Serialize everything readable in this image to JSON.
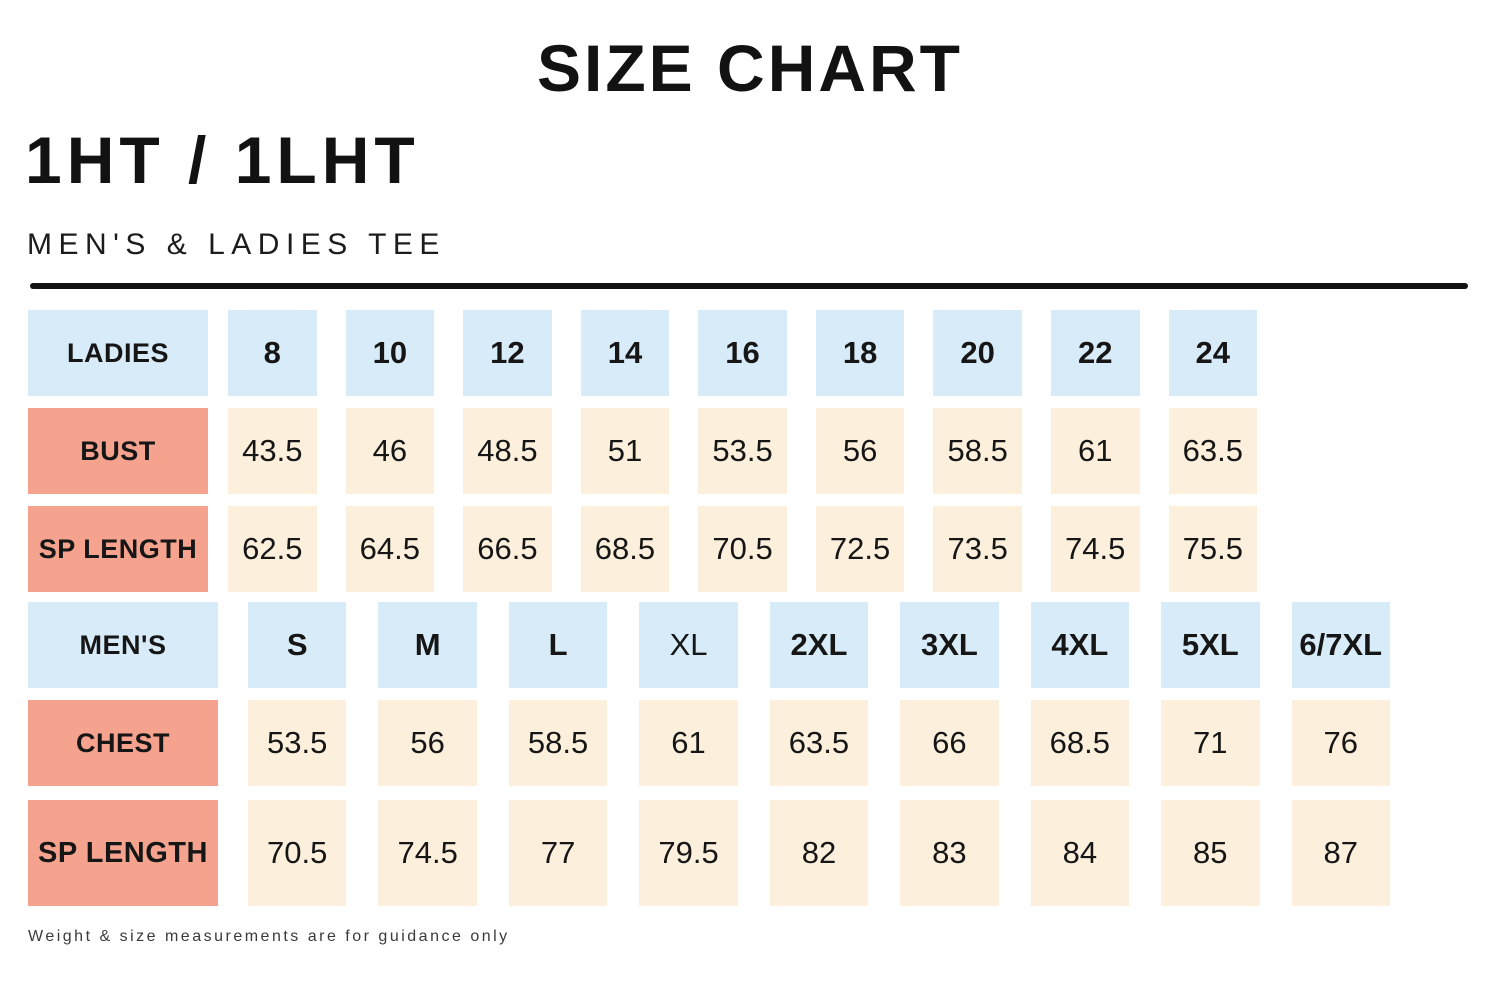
{
  "page": {
    "title": "SIZE CHART",
    "product_code": "1HT / 1LHT",
    "subtitle": "MEN'S & LADIES TEE",
    "footnote": "Weight & size measurements are for guidance only"
  },
  "colors": {
    "size_header_bg": "#d8ebf8",
    "row_label_bg": "#f5a38f",
    "value_cell_bg": "#fcf0dd",
    "text": "#161616",
    "divider": "#121212"
  },
  "chart_data": [
    {
      "type": "table",
      "title": "1HT / 1LHT Ladies tee sizes",
      "columns": [
        "LADIES",
        "8",
        "10",
        "12",
        "14",
        "16",
        "18",
        "20",
        "22",
        "24"
      ],
      "rows": [
        [
          "BUST",
          43.5,
          46,
          48.5,
          51,
          53.5,
          56,
          58.5,
          61,
          63.5
        ],
        [
          "SP LENGTH",
          62.5,
          64.5,
          66.5,
          68.5,
          70.5,
          72.5,
          73.5,
          74.5,
          75.5
        ]
      ]
    },
    {
      "type": "table",
      "title": "1HT / 1LHT Men's tee sizes",
      "columns": [
        "MEN'S",
        "S",
        "M",
        "L",
        "XL",
        "2XL",
        "3XL",
        "4XL",
        "5XL",
        "6/7XL"
      ],
      "rows": [
        [
          "CHEST",
          53.5,
          56,
          58.5,
          61,
          63.5,
          66,
          68.5,
          71,
          76
        ],
        [
          "SP LENGTH",
          70.5,
          74.5,
          77,
          79.5,
          82,
          83,
          84,
          85,
          87
        ]
      ]
    }
  ]
}
